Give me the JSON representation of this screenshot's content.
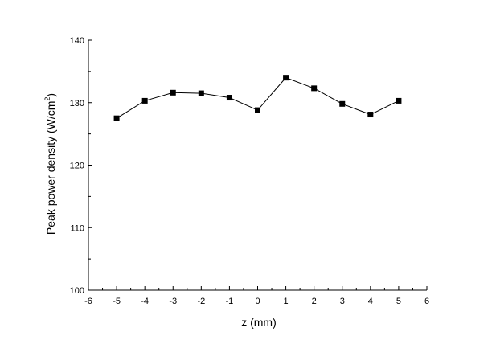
{
  "chart_data": {
    "type": "line",
    "title": "",
    "xlabel": "z (mm)",
    "ylabel_main": "Peak power density (W/cm",
    "ylabel_sup": "2",
    "ylabel_close": ")",
    "xlim": [
      -6,
      6
    ],
    "ylim": [
      100,
      140
    ],
    "x_ticks": [
      -6,
      -5,
      -4,
      -3,
      -2,
      -1,
      0,
      1,
      2,
      3,
      4,
      5,
      6
    ],
    "y_ticks": [
      100,
      110,
      120,
      130,
      140
    ],
    "grid": false,
    "legend": "none",
    "marker": "square",
    "line_color": "#000000",
    "series": [
      {
        "x": [
          -5,
          -4,
          -3,
          -2,
          -1,
          0,
          1,
          2,
          3,
          4,
          5
        ],
        "y": [
          127.5,
          130.3,
          131.6,
          131.5,
          130.8,
          128.8,
          134.0,
          132.3,
          129.8,
          128.1,
          130.3
        ]
      }
    ]
  }
}
